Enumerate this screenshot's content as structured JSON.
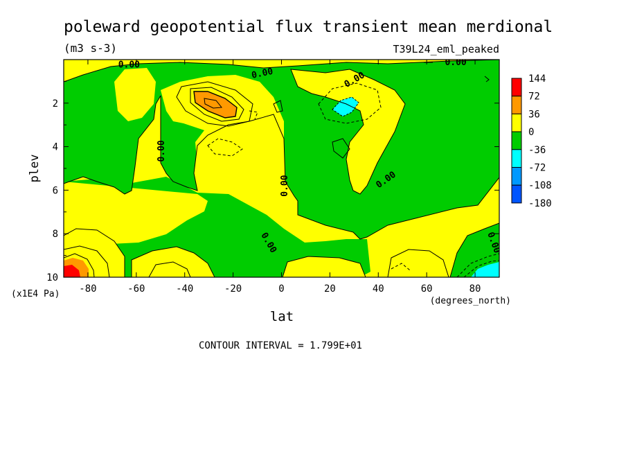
{
  "chart_data": {
    "type": "heatmap",
    "title": "poleward geopotential flux transient mean merdional",
    "units": "(m3 s-3)",
    "run_label": "T39L24_eml_peaked",
    "xlabel": "lat",
    "x_units": "(degrees_north)",
    "ylabel": "plev",
    "y_units": "(x1E4 Pa)",
    "xlim": [
      -90,
      90
    ],
    "ylim": [
      10,
      0
    ],
    "x_ticks": [
      -80,
      -60,
      -40,
      -20,
      0,
      20,
      40,
      60,
      80
    ],
    "y_ticks": [
      2,
      4,
      6,
      8,
      10
    ],
    "legend": {
      "placement": "right",
      "levels": [
        "144",
        "72",
        "36",
        "0",
        "-36",
        "-72",
        "-108",
        "-180"
      ],
      "colors": [
        "#ff0000",
        "#ff9900",
        "#ffff00",
        "#00cc00",
        "#00ffff",
        "#0099ff",
        "#0055ff"
      ]
    },
    "contour_labels": [
      {
        "text": "0.00",
        "lat": -63,
        "plev": 0.2
      },
      {
        "text": "0.00",
        "lat": -8,
        "plev": 0.6
      },
      {
        "text": "0.00",
        "lat": 30,
        "plev": 0.9
      },
      {
        "text": "0.00",
        "lat": 72,
        "plev": 0.1
      },
      {
        "text": "0.00",
        "lat": -50,
        "plev": 4.2
      },
      {
        "text": "0.00",
        "lat": 1,
        "plev": 5.8
      },
      {
        "text": "0.00",
        "lat": 43,
        "plev": 5.5
      },
      {
        "text": "0.00",
        "lat": -5,
        "plev": 8.4
      },
      {
        "text": "0.00",
        "lat": 88,
        "plev": 8.4
      }
    ],
    "footer": "CONTOUR INTERVAL = 1.799E+01"
  }
}
